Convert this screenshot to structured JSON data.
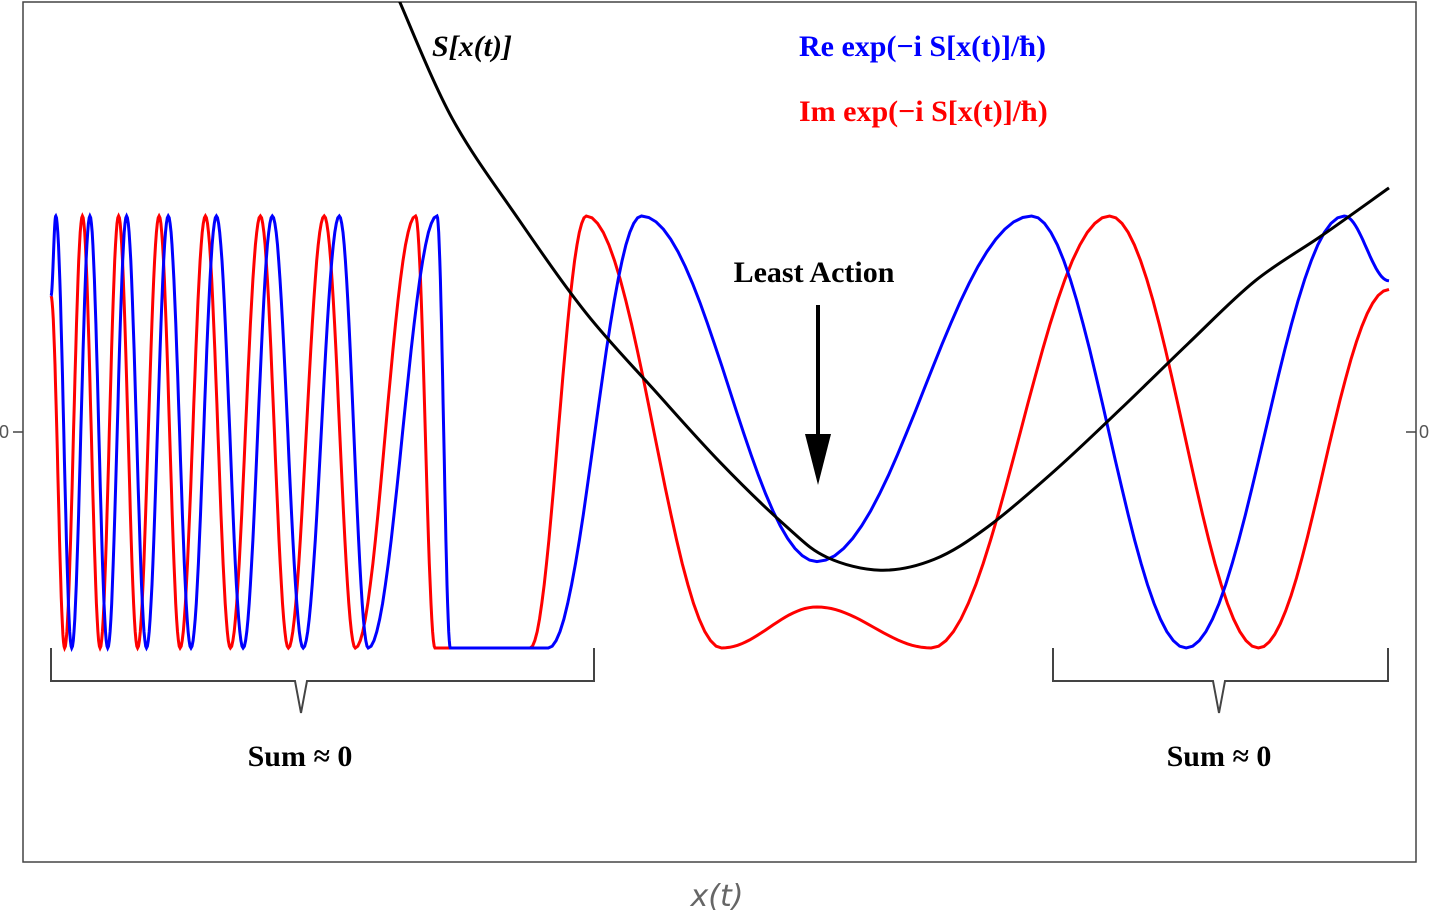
{
  "chart_data": {
    "type": "line",
    "title": "",
    "xlabel": "x(t)",
    "ylabel": "",
    "xlim": [
      0,
      1
    ],
    "ylim": [
      -1.75,
      1.75
    ],
    "yticks": [
      {
        "value": 0,
        "label": "0"
      }
    ],
    "grid": false,
    "colors": {
      "action": "#000000",
      "real": "#0000ff",
      "imag": "#ff0000",
      "frame": "#444444"
    },
    "series": [
      {
        "name": "S[x(t)]",
        "role": "action",
        "color": "#000000",
        "x": [
          0.26,
          0.3,
          0.35,
          0.4,
          0.45,
          0.5,
          0.55,
          0.58,
          0.62,
          0.66,
          0.7,
          0.75,
          0.8,
          0.85,
          0.9,
          0.95,
          1.0
        ],
        "y": [
          2.0,
          1.45,
          0.98,
          0.55,
          0.2,
          -0.14,
          -0.44,
          -0.58,
          -0.64,
          -0.59,
          -0.44,
          -0.18,
          0.11,
          0.41,
          0.7,
          0.91,
          1.13
        ]
      },
      {
        "name": "Re exp(−i S[x(t)]/ħ)",
        "role": "real",
        "color": "#0000ff",
        "peaks_x": [
          0.0036,
          0.0291,
          0.0565,
          0.0876,
          0.1236,
          0.1654,
          0.2155,
          0.2885,
          0.4413,
          0.7329,
          0.9665
        ],
        "troughs_x": [
          0.0155,
          0.0424,
          0.0714,
          0.1046,
          0.1436,
          0.1885,
          0.2371,
          0.2985,
          0.3717,
          0.5724,
          0.8484
        ],
        "trough_y": [
          -1.0,
          -1.0,
          -1.0,
          -1.0,
          -1.0,
          -1.0,
          -1.0,
          -1.0,
          -1.0,
          -0.6,
          -1.0
        ],
        "end_y": [
          0.63,
          0.7
        ]
      },
      {
        "name": "Im exp(−i S[x(t)]/ħ)",
        "role": "imag",
        "color": "#ff0000",
        "peaks_x": [
          0.0235,
          0.0505,
          0.0808,
          0.1154,
          0.1565,
          0.2042,
          0.2725,
          0.4001,
          0.5724,
          0.7912
        ],
        "troughs_x": [
          0.0102,
          0.0367,
          0.0647,
          0.0965,
          0.1341,
          0.1774,
          0.2274,
          0.287,
          0.3581,
          0.5013,
          0.6578,
          0.9024
        ],
        "trough_y": [
          -1.0,
          -1.0,
          -1.0,
          -1.0,
          -1.0,
          -1.0,
          -1.0,
          -1.0,
          -1.0,
          -1.0,
          -1.0,
          -1.0
        ],
        "peak_y": [
          1.0,
          1.0,
          1.0,
          1.0,
          1.0,
          1.0,
          1.0,
          1.0,
          -0.81,
          1.0
        ],
        "end_y": [
          0.63,
          0.66
        ]
      }
    ],
    "annotations": [
      {
        "text": "Least Action",
        "arrow_to_x": 0.574,
        "arrow_to_y": -0.25
      },
      {
        "text": "Sum ≈ 0",
        "brace_x": [
          0.0,
          0.406
        ]
      },
      {
        "text": "Sum ≈ 0",
        "brace_x": [
          0.748,
          1.0
        ]
      }
    ]
  }
}
